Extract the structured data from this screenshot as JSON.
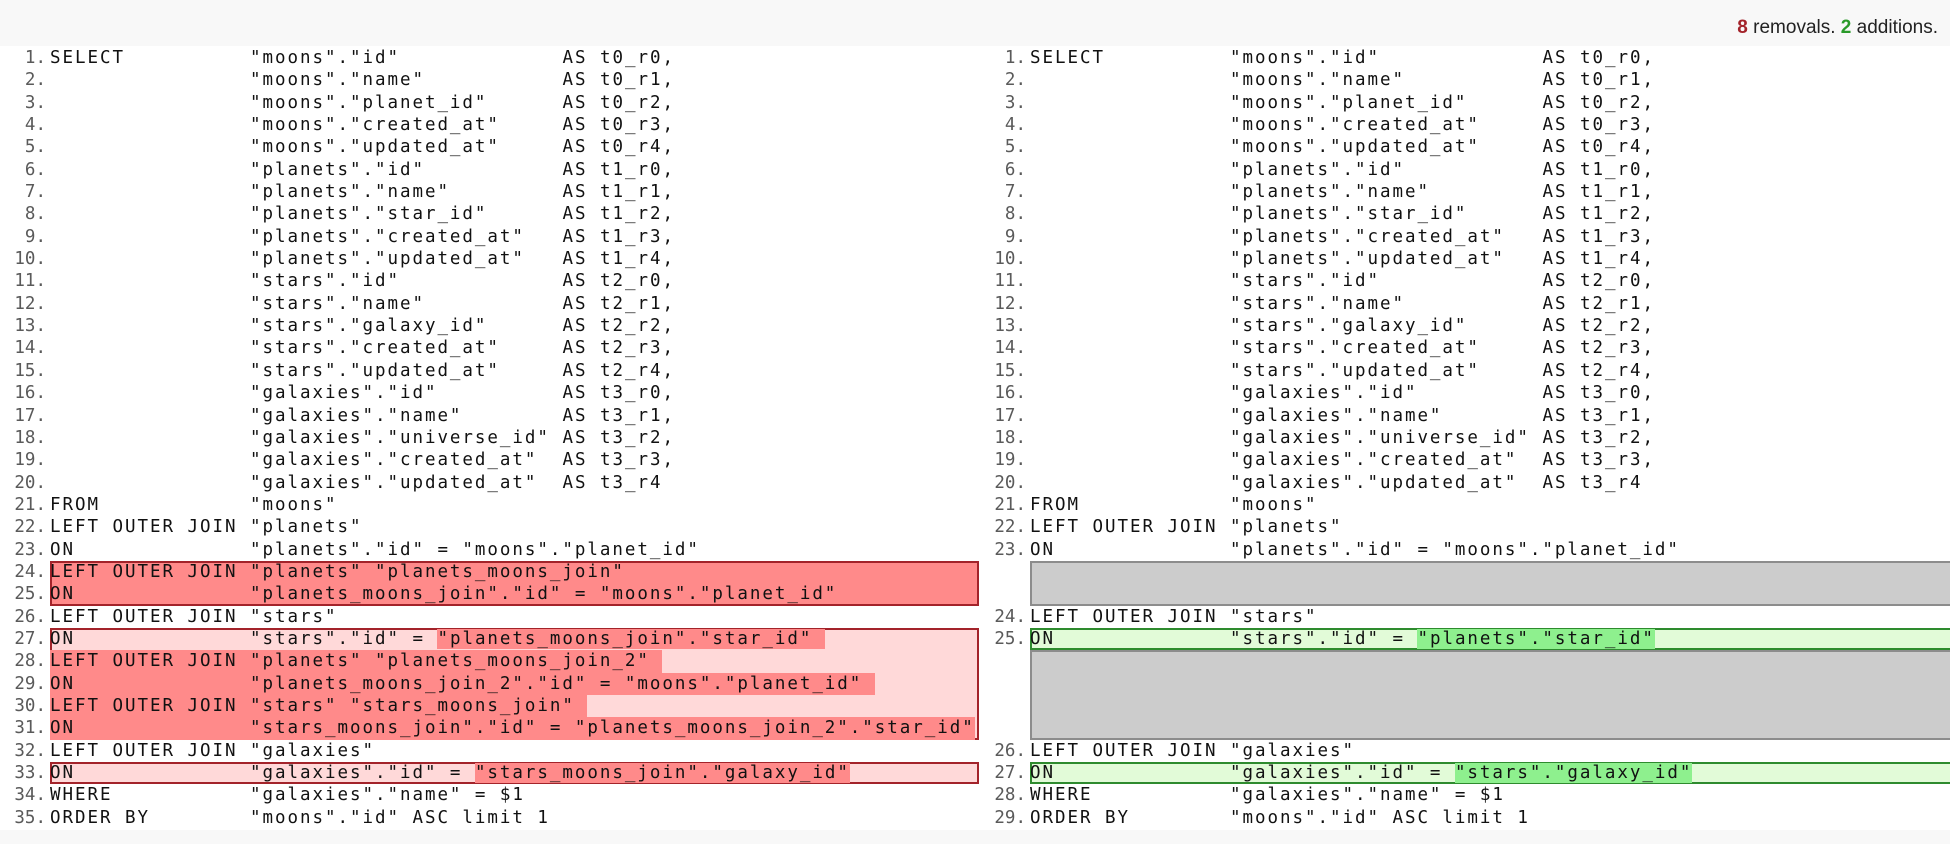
{
  "summary": {
    "removals_count": "8",
    "removals_label": " removals. ",
    "additions_count": "2",
    "additions_label": " additions."
  },
  "colors": {
    "removed_strong": "#ff8a8a",
    "removed_light": "#ffd9d9",
    "removed_border": "#a3232a",
    "added_strong": "#8ef08e",
    "added_light": "#e2fbd8",
    "added_border": "#2e8b2e",
    "filler": "#cccccc"
  },
  "left": {
    "blocks": [
      {
        "type": "same",
        "lines": [
          {
            "n": "1.",
            "kw": "SELECT",
            "expr": "\"moons\".\"id\"",
            "alias": "AS t0_r0,"
          },
          {
            "n": "2.",
            "kw": "",
            "expr": "\"moons\".\"name\"",
            "alias": "AS t0_r1,"
          },
          {
            "n": "3.",
            "kw": "",
            "expr": "\"moons\".\"planet_id\"",
            "alias": "AS t0_r2,"
          },
          {
            "n": "4.",
            "kw": "",
            "expr": "\"moons\".\"created_at\"",
            "alias": "AS t0_r3,"
          },
          {
            "n": "5.",
            "kw": "",
            "expr": "\"moons\".\"updated_at\"",
            "alias": "AS t0_r4,"
          },
          {
            "n": "6.",
            "kw": "",
            "expr": "\"planets\".\"id\"",
            "alias": "AS t1_r0,"
          },
          {
            "n": "7.",
            "kw": "",
            "expr": "\"planets\".\"name\"",
            "alias": "AS t1_r1,"
          },
          {
            "n": "8.",
            "kw": "",
            "expr": "\"planets\".\"star_id\"",
            "alias": "AS t1_r2,"
          },
          {
            "n": "9.",
            "kw": "",
            "expr": "\"planets\".\"created_at\"",
            "alias": "AS t1_r3,"
          },
          {
            "n": "10.",
            "kw": "",
            "expr": "\"planets\".\"updated_at\"",
            "alias": "AS t1_r4,"
          },
          {
            "n": "11.",
            "kw": "",
            "expr": "\"stars\".\"id\"",
            "alias": "AS t2_r0,"
          },
          {
            "n": "12.",
            "kw": "",
            "expr": "\"stars\".\"name\"",
            "alias": "AS t2_r1,"
          },
          {
            "n": "13.",
            "kw": "",
            "expr": "\"stars\".\"galaxy_id\"",
            "alias": "AS t2_r2,"
          },
          {
            "n": "14.",
            "kw": "",
            "expr": "\"stars\".\"created_at\"",
            "alias": "AS t2_r3,"
          },
          {
            "n": "15.",
            "kw": "",
            "expr": "\"stars\".\"updated_at\"",
            "alias": "AS t2_r4,"
          },
          {
            "n": "16.",
            "kw": "",
            "expr": "\"galaxies\".\"id\"",
            "alias": "AS t3_r0,"
          },
          {
            "n": "17.",
            "kw": "",
            "expr": "\"galaxies\".\"name\"",
            "alias": "AS t3_r1,"
          },
          {
            "n": "18.",
            "kw": "",
            "expr": "\"galaxies\".\"universe_id\"",
            "alias": "AS t3_r2,"
          },
          {
            "n": "19.",
            "kw": "",
            "expr": "\"galaxies\".\"created_at\"",
            "alias": "AS t3_r3,"
          },
          {
            "n": "20.",
            "kw": "",
            "expr": "\"galaxies\".\"updated_at\"",
            "alias": "AS t3_r4"
          },
          {
            "n": "21.",
            "kw": "FROM",
            "segs": [
              {
                "t": "\"moons\""
              }
            ]
          },
          {
            "n": "22.",
            "kw": "LEFT OUTER JOIN",
            "segs": [
              {
                "t": "\"planets\""
              }
            ]
          },
          {
            "n": "23.",
            "kw": "ON",
            "segs": [
              {
                "t": "\"planets\".\"id\" = \"moons\".\"planet_id\""
              }
            ]
          }
        ]
      },
      {
        "type": "removed",
        "fill": "strong",
        "lines": [
          {
            "n": "24.",
            "kw": "LEFT OUTER JOIN",
            "segs": [
              {
                "t": "\"planets\" \"planets_moons_join\""
              }
            ]
          },
          {
            "n": "25.",
            "kw": "ON",
            "segs": [
              {
                "t": "\"planets_moons_join\".\"id\" = \"moons\".\"planet_id\""
              }
            ]
          }
        ]
      },
      {
        "type": "same",
        "lines": [
          {
            "n": "26.",
            "kw": "LEFT OUTER JOIN",
            "segs": [
              {
                "t": "\"stars\""
              }
            ]
          }
        ]
      },
      {
        "type": "removed",
        "fill": "light",
        "lines": [
          {
            "n": "27.",
            "kw": "ON",
            "segs": [
              {
                "t": "\"stars\".\"id\" = "
              },
              {
                "t": "\"planets_moons_join\".\"star_id\" ",
                "hl": true
              }
            ]
          },
          {
            "n": "28.",
            "kw": "LEFT OUTER JOIN",
            "full_hl": true,
            "segs": [
              {
                "t": "\"planets\" \"planets_moons_join_2\" "
              }
            ]
          },
          {
            "n": "29.",
            "kw": "ON",
            "full_hl": true,
            "segs": [
              {
                "t": "\"planets_moons_join_2\".\"id\" = \"moons\".\"planet_id\" "
              }
            ]
          },
          {
            "n": "30.",
            "kw": "LEFT OUTER JOIN",
            "full_hl": true,
            "segs": [
              {
                "t": "\"stars\" \"stars_moons_join\" "
              }
            ]
          },
          {
            "n": "31.",
            "kw": "ON",
            "full_hl": true,
            "segs": [
              {
                "t": "\"stars_moons_join\".\"id\" = \"planets_moons_join_2\".\"star_id\""
              }
            ]
          }
        ]
      },
      {
        "type": "same",
        "lines": [
          {
            "n": "32.",
            "kw": "LEFT OUTER JOIN",
            "segs": [
              {
                "t": "\"galaxies\""
              }
            ]
          }
        ]
      },
      {
        "type": "removed",
        "fill": "light",
        "lines": [
          {
            "n": "33.",
            "kw": "ON",
            "segs": [
              {
                "t": "\"galaxies\".\"id\" = "
              },
              {
                "t": "\"stars_moons_join\".\"galaxy_id\"",
                "hl": true
              }
            ]
          }
        ]
      },
      {
        "type": "same",
        "lines": [
          {
            "n": "34.",
            "kw": "WHERE",
            "segs": [
              {
                "t": "\"galaxies\".\"name\" = $1"
              }
            ]
          },
          {
            "n": "35.",
            "kw": "ORDER BY",
            "segs": [
              {
                "t": "\"moons\".\"id\" ASC limit 1"
              }
            ]
          }
        ]
      }
    ]
  },
  "right": {
    "blocks": [
      {
        "type": "same",
        "lines": [
          {
            "n": "1.",
            "kw": "SELECT",
            "expr": "\"moons\".\"id\"",
            "alias": "AS t0_r0,"
          },
          {
            "n": "2.",
            "kw": "",
            "expr": "\"moons\".\"name\"",
            "alias": "AS t0_r1,"
          },
          {
            "n": "3.",
            "kw": "",
            "expr": "\"moons\".\"planet_id\"",
            "alias": "AS t0_r2,"
          },
          {
            "n": "4.",
            "kw": "",
            "expr": "\"moons\".\"created_at\"",
            "alias": "AS t0_r3,"
          },
          {
            "n": "5.",
            "kw": "",
            "expr": "\"moons\".\"updated_at\"",
            "alias": "AS t0_r4,"
          },
          {
            "n": "6.",
            "kw": "",
            "expr": "\"planets\".\"id\"",
            "alias": "AS t1_r0,"
          },
          {
            "n": "7.",
            "kw": "",
            "expr": "\"planets\".\"name\"",
            "alias": "AS t1_r1,"
          },
          {
            "n": "8.",
            "kw": "",
            "expr": "\"planets\".\"star_id\"",
            "alias": "AS t1_r2,"
          },
          {
            "n": "9.",
            "kw": "",
            "expr": "\"planets\".\"created_at\"",
            "alias": "AS t1_r3,"
          },
          {
            "n": "10.",
            "kw": "",
            "expr": "\"planets\".\"updated_at\"",
            "alias": "AS t1_r4,"
          },
          {
            "n": "11.",
            "kw": "",
            "expr": "\"stars\".\"id\"",
            "alias": "AS t2_r0,"
          },
          {
            "n": "12.",
            "kw": "",
            "expr": "\"stars\".\"name\"",
            "alias": "AS t2_r1,"
          },
          {
            "n": "13.",
            "kw": "",
            "expr": "\"stars\".\"galaxy_id\"",
            "alias": "AS t2_r2,"
          },
          {
            "n": "14.",
            "kw": "",
            "expr": "\"stars\".\"created_at\"",
            "alias": "AS t2_r3,"
          },
          {
            "n": "15.",
            "kw": "",
            "expr": "\"stars\".\"updated_at\"",
            "alias": "AS t2_r4,"
          },
          {
            "n": "16.",
            "kw": "",
            "expr": "\"galaxies\".\"id\"",
            "alias": "AS t3_r0,"
          },
          {
            "n": "17.",
            "kw": "",
            "expr": "\"galaxies\".\"name\"",
            "alias": "AS t3_r1,"
          },
          {
            "n": "18.",
            "kw": "",
            "expr": "\"galaxies\".\"universe_id\"",
            "alias": "AS t3_r2,"
          },
          {
            "n": "19.",
            "kw": "",
            "expr": "\"galaxies\".\"created_at\"",
            "alias": "AS t3_r3,"
          },
          {
            "n": "20.",
            "kw": "",
            "expr": "\"galaxies\".\"updated_at\"",
            "alias": "AS t3_r4"
          },
          {
            "n": "21.",
            "kw": "FROM",
            "segs": [
              {
                "t": "\"moons\""
              }
            ]
          },
          {
            "n": "22.",
            "kw": "LEFT OUTER JOIN",
            "segs": [
              {
                "t": "\"planets\""
              }
            ]
          },
          {
            "n": "23.",
            "kw": "ON",
            "segs": [
              {
                "t": "\"planets\".\"id\" = \"moons\".\"planet_id\""
              }
            ]
          }
        ]
      },
      {
        "type": "filler",
        "rows": 2
      },
      {
        "type": "same",
        "lines": [
          {
            "n": "24.",
            "kw": "LEFT OUTER JOIN",
            "segs": [
              {
                "t": "\"stars\""
              }
            ]
          }
        ]
      },
      {
        "type": "added",
        "fill": "light",
        "lines": [
          {
            "n": "25.",
            "kw": "ON",
            "segs": [
              {
                "t": "\"stars\".\"id\" = "
              },
              {
                "t": "\"planets\".\"star_id\"",
                "hl": true
              }
            ]
          }
        ]
      },
      {
        "type": "filler",
        "rows": 4
      },
      {
        "type": "same",
        "lines": [
          {
            "n": "26.",
            "kw": "LEFT OUTER JOIN",
            "segs": [
              {
                "t": "\"galaxies\""
              }
            ]
          }
        ]
      },
      {
        "type": "added",
        "fill": "light",
        "lines": [
          {
            "n": "27.",
            "kw": "ON",
            "segs": [
              {
                "t": "\"galaxies\".\"id\" = "
              },
              {
                "t": "\"stars\".\"galaxy_id\"",
                "hl": true
              }
            ]
          }
        ]
      },
      {
        "type": "same",
        "lines": [
          {
            "n": "28.",
            "kw": "WHERE",
            "segs": [
              {
                "t": "\"galaxies\".\"name\" = $1"
              }
            ]
          },
          {
            "n": "29.",
            "kw": "ORDER BY",
            "segs": [
              {
                "t": "\"moons\".\"id\" ASC limit 1"
              }
            ]
          }
        ]
      }
    ]
  }
}
